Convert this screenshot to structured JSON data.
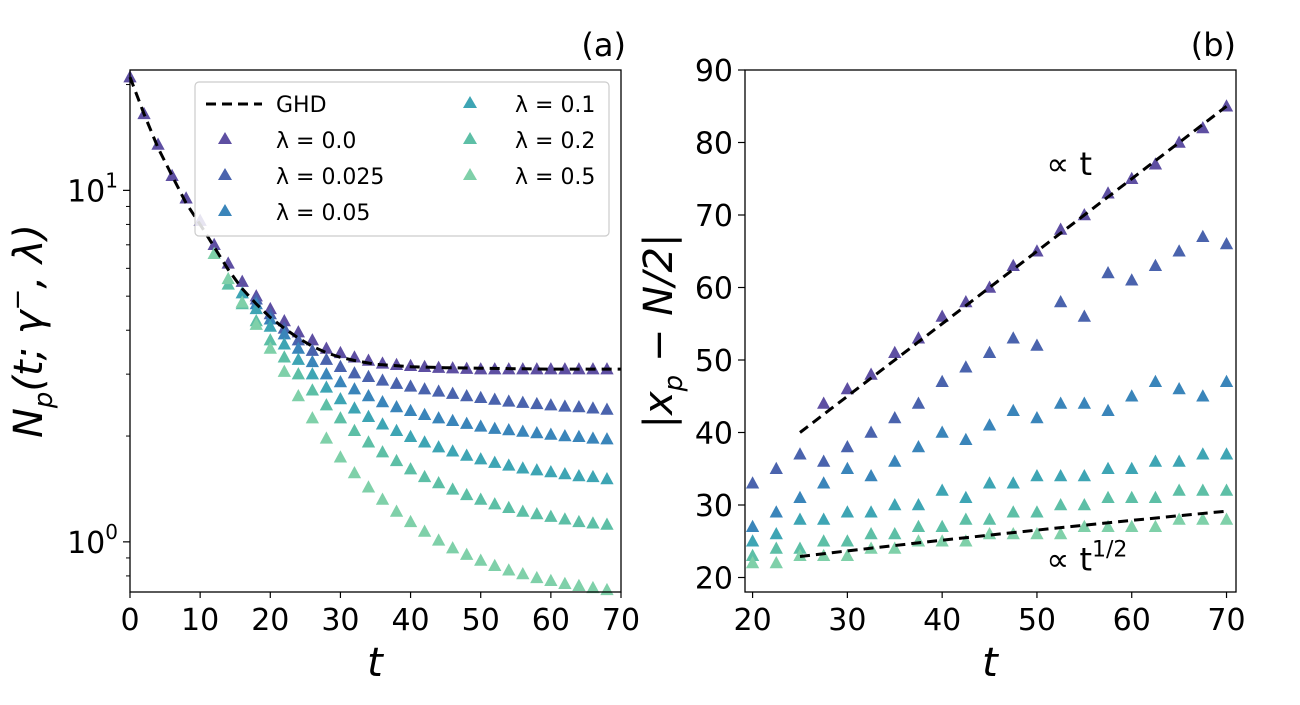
{
  "colors": {
    "ghd": "#000000",
    "lam_0_0": "#5e4fa2",
    "lam_0_025": "#4a63ad",
    "lam_0_05": "#3a85ba",
    "lam_0_1": "#3ea5b4",
    "lam_0_2": "#5dbfa6",
    "lam_0_5": "#7fd0a9"
  },
  "chart_data": [
    {
      "type": "scatter",
      "panel_label": "(a)",
      "xlabel": "t",
      "ylabel": "N_p(t; γ⁻, λ)",
      "ylabel_parts": {
        "main": "N",
        "sub": "p",
        "args": "(t; γ",
        "sup": "−",
        "tail": ", λ)"
      },
      "xlim": [
        0,
        70
      ],
      "ylim": [
        0.72,
        22
      ],
      "yscale": "log",
      "xticks": [
        "0",
        "10",
        "20",
        "30",
        "40",
        "50",
        "60",
        "70"
      ],
      "yticks": [
        {
          "base": "10",
          "exp": "0"
        },
        {
          "base": "10",
          "exp": "1"
        }
      ],
      "legend_position": "top-right",
      "legend": [
        {
          "label": "GHD",
          "kind": "line"
        },
        {
          "label": "λ = 0.0",
          "kind": "marker"
        },
        {
          "label": "λ = 0.025",
          "kind": "marker"
        },
        {
          "label": "λ = 0.05",
          "kind": "marker"
        },
        {
          "label": "λ = 0.1",
          "kind": "marker"
        },
        {
          "label": "λ = 0.2",
          "kind": "marker"
        },
        {
          "label": "λ = 0.5",
          "kind": "marker"
        }
      ],
      "ghd": {
        "x": [
          0,
          2,
          4,
          6,
          8,
          10,
          12,
          14,
          16,
          18,
          20,
          22,
          24,
          26,
          28,
          30,
          32,
          35,
          40,
          45,
          50,
          55,
          60,
          65,
          70
        ],
        "y": [
          21,
          16.5,
          13.2,
          11,
          9.2,
          8,
          6.9,
          5.95,
          5.25,
          4.75,
          4.35,
          4.05,
          3.8,
          3.6,
          3.45,
          3.35,
          3.28,
          3.2,
          3.15,
          3.13,
          3.12,
          3.11,
          3.1,
          3.1,
          3.1
        ]
      },
      "series": [
        {
          "name": "λ = 0.0",
          "color_key": "lam_0_0",
          "x": [
            0,
            2,
            4,
            6,
            8,
            10,
            12,
            14,
            16,
            18,
            20,
            22,
            24,
            26,
            28,
            30,
            32,
            34,
            36,
            38,
            40,
            42,
            44,
            46,
            48,
            50,
            52,
            54,
            56,
            58,
            60,
            62,
            64,
            66,
            68
          ],
          "y": [
            21,
            16.5,
            13.5,
            11,
            9.5,
            8.2,
            7,
            6.2,
            5.5,
            5,
            4.6,
            4.25,
            3.95,
            3.75,
            3.55,
            3.45,
            3.35,
            3.28,
            3.22,
            3.19,
            3.17,
            3.15,
            3.13,
            3.12,
            3.11,
            3.1,
            3.1,
            3.1,
            3.1,
            3.1,
            3.1,
            3.1,
            3.1,
            3.1,
            3.1
          ]
        },
        {
          "name": "λ = 0.025",
          "color_key": "lam_0_025",
          "x": [
            18,
            20,
            22,
            24,
            26,
            28,
            30,
            32,
            34,
            36,
            38,
            40,
            42,
            44,
            46,
            48,
            50,
            52,
            54,
            56,
            58,
            60,
            62,
            64,
            66,
            68
          ],
          "y": [
            4.9,
            4.45,
            4.05,
            3.75,
            3.5,
            3.3,
            3.15,
            3.02,
            2.95,
            2.88,
            2.82,
            2.77,
            2.72,
            2.68,
            2.64,
            2.6,
            2.57,
            2.54,
            2.51,
            2.49,
            2.47,
            2.45,
            2.43,
            2.42,
            2.4,
            2.38
          ]
        },
        {
          "name": "λ = 0.05",
          "color_key": "lam_0_05",
          "x": [
            18,
            20,
            22,
            24,
            26,
            28,
            30,
            32,
            34,
            36,
            38,
            40,
            42,
            44,
            46,
            48,
            50,
            52,
            54,
            56,
            58,
            60,
            62,
            64,
            66,
            68
          ],
          "y": [
            4.75,
            4.3,
            3.9,
            3.55,
            3.25,
            3.0,
            2.85,
            2.72,
            2.6,
            2.5,
            2.42,
            2.36,
            2.3,
            2.25,
            2.21,
            2.17,
            2.13,
            2.1,
            2.08,
            2.06,
            2.04,
            2.02,
            2.0,
            1.99,
            1.97,
            1.96
          ]
        },
        {
          "name": "λ = 0.1",
          "color_key": "lam_0_1",
          "x": [
            16,
            18,
            20,
            22,
            24,
            26,
            28,
            30,
            32,
            34,
            36,
            38,
            40,
            42,
            44,
            46,
            48,
            50,
            52,
            54,
            56,
            58,
            60,
            62,
            64,
            66,
            68
          ],
          "y": [
            5.1,
            4.6,
            4.1,
            3.65,
            3.3,
            3.0,
            2.75,
            2.55,
            2.4,
            2.27,
            2.16,
            2.07,
            1.99,
            1.92,
            1.86,
            1.81,
            1.76,
            1.72,
            1.68,
            1.65,
            1.62,
            1.6,
            1.58,
            1.56,
            1.54,
            1.53,
            1.51
          ]
        },
        {
          "name": "λ = 0.2",
          "color_key": "lam_0_2",
          "x": [
            14,
            16,
            18,
            20,
            22,
            24,
            26,
            28,
            30,
            32,
            34,
            36,
            38,
            40,
            42,
            44,
            46,
            48,
            50,
            52,
            54,
            56,
            58,
            60,
            62,
            64,
            66,
            68
          ],
          "y": [
            5.4,
            4.75,
            4.25,
            3.75,
            3.35,
            3.0,
            2.7,
            2.45,
            2.25,
            2.07,
            1.92,
            1.8,
            1.7,
            1.61,
            1.53,
            1.47,
            1.41,
            1.36,
            1.32,
            1.28,
            1.25,
            1.22,
            1.2,
            1.18,
            1.16,
            1.14,
            1.13,
            1.12
          ]
        },
        {
          "name": "λ = 0.5",
          "color_key": "lam_0_5",
          "x": [
            12,
            14,
            16,
            18,
            20,
            22,
            24,
            26,
            28,
            30,
            32,
            34,
            36,
            38,
            40,
            42,
            44,
            46,
            48,
            50,
            52,
            54,
            56,
            58,
            60,
            62,
            64,
            66,
            68
          ],
          "y": [
            6.6,
            5.6,
            4.8,
            4.15,
            3.55,
            3.05,
            2.6,
            2.25,
            1.97,
            1.74,
            1.57,
            1.43,
            1.32,
            1.22,
            1.14,
            1.07,
            1.01,
            0.96,
            0.92,
            0.885,
            0.855,
            0.83,
            0.81,
            0.79,
            0.775,
            0.76,
            0.75,
            0.74,
            0.73
          ]
        }
      ]
    },
    {
      "type": "scatter",
      "panel_label": "(b)",
      "xlabel": "t",
      "ylabel": "|x_p − N/2|",
      "ylabel_parts": {
        "pre": "|x",
        "sub": "p",
        "post": " − N/2|"
      },
      "xlim": [
        19.2,
        71
      ],
      "ylim": [
        18,
        90
      ],
      "xticks": [
        "20",
        "30",
        "40",
        "50",
        "60",
        "70"
      ],
      "yticks": [
        "20",
        "30",
        "40",
        "50",
        "60",
        "70",
        "80",
        "90"
      ],
      "annotations": [
        {
          "text": "∝ t",
          "x": 51,
          "y": 75.5
        },
        {
          "text": "∝ t",
          "sup": "1/2",
          "x": 51,
          "y": 21
        }
      ],
      "guide_lines": [
        {
          "name": "linear",
          "x": [
            25,
            70
          ],
          "y": [
            40,
            85
          ]
        },
        {
          "name": "sqrt",
          "x": [
            25,
            30,
            35,
            40,
            45,
            50,
            55,
            60,
            65,
            70
          ],
          "y": [
            22.9,
            23.67,
            24.41,
            25.14,
            25.85,
            26.54,
            27.22,
            27.88,
            28.52,
            29.15
          ]
        }
      ],
      "series": [
        {
          "name": "λ = 0.0",
          "color_key": "lam_0_0",
          "x": [
            27.5,
            30,
            32.5,
            35,
            37.5,
            40,
            42.5,
            45,
            47.5,
            50,
            52.5,
            55,
            57.5,
            60,
            62.5,
            65,
            67.5,
            70
          ],
          "y": [
            44,
            46,
            48,
            51,
            53,
            56,
            58,
            60,
            63,
            65,
            68,
            70,
            73,
            75,
            77,
            80,
            82,
            85
          ]
        },
        {
          "name": "λ = 0.025",
          "color_key": "lam_0_025",
          "x": [
            20,
            22.5,
            25,
            27.5,
            30,
            32.5,
            35,
            37.5,
            40,
            42.5,
            45,
            47.5,
            50,
            52.5,
            55,
            57.5,
            60,
            62.5,
            65,
            67.5,
            70
          ],
          "y": [
            33,
            35,
            37,
            36,
            38,
            40,
            42,
            44,
            47,
            49,
            51,
            53,
            52,
            58,
            56,
            62,
            61,
            63,
            65,
            67,
            66
          ]
        },
        {
          "name": "λ = 0.05",
          "color_key": "lam_0_05",
          "x": [
            20,
            22.5,
            25,
            27.5,
            30,
            32.5,
            35,
            37.5,
            40,
            42.5,
            45,
            47.5,
            50,
            52.5,
            55,
            57.5,
            60,
            62.5,
            65,
            67.5,
            70
          ],
          "y": [
            27,
            29,
            31,
            33,
            35,
            34,
            36,
            38,
            40,
            39,
            41,
            43,
            42,
            44,
            44,
            43,
            45,
            47,
            46,
            45,
            47
          ]
        },
        {
          "name": "λ = 0.1",
          "color_key": "lam_0_1",
          "x": [
            20,
            22.5,
            25,
            27.5,
            30,
            32.5,
            35,
            37.5,
            40,
            42.5,
            45,
            47.5,
            50,
            52.5,
            55,
            57.5,
            60,
            62.5,
            65,
            67.5,
            70
          ],
          "y": [
            25,
            26,
            28,
            28,
            29,
            29,
            30,
            30,
            32,
            31,
            33,
            33,
            34,
            34,
            34,
            35,
            35,
            36,
            36,
            37,
            37
          ]
        },
        {
          "name": "λ = 0.2",
          "color_key": "lam_0_2",
          "x": [
            20,
            22.5,
            25,
            27.5,
            30,
            32.5,
            35,
            37.5,
            40,
            42.5,
            45,
            47.5,
            50,
            52.5,
            55,
            57.5,
            60,
            62.5,
            65,
            67.5,
            70
          ],
          "y": [
            23,
            24,
            24,
            25,
            25,
            26,
            26,
            27,
            27,
            28,
            28,
            29,
            29,
            30,
            30,
            31,
            31,
            31,
            32,
            32,
            32
          ]
        },
        {
          "name": "λ = 0.5",
          "color_key": "lam_0_5",
          "x": [
            20,
            22.5,
            25,
            27.5,
            30,
            32.5,
            35,
            37.5,
            40,
            42.5,
            45,
            47.5,
            50,
            52.5,
            55,
            57.5,
            60,
            62.5,
            65,
            67.5,
            70
          ],
          "y": [
            22,
            22,
            23,
            23,
            23,
            24,
            24,
            25,
            25,
            25,
            26,
            26,
            26,
            26,
            27,
            27,
            27,
            27,
            28,
            28,
            28
          ]
        }
      ]
    }
  ]
}
